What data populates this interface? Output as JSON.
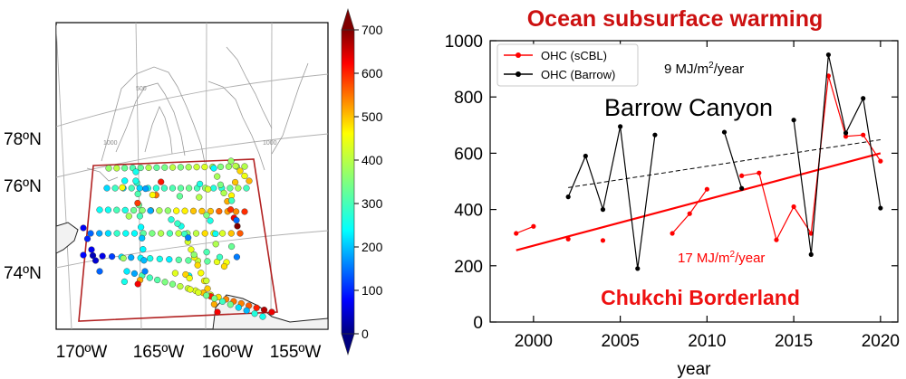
{
  "map_panel": {
    "lat_labels": [
      "78ºN",
      "76ºN",
      "74ºN"
    ],
    "lon_labels": [
      "170ºW",
      "165ºW",
      "160ºW",
      "155ºW"
    ],
    "contour_labels": [
      "500",
      "1000",
      "1000"
    ],
    "colorbar": {
      "ticks": [
        "700",
        "600",
        "500",
        "400",
        "300",
        "200",
        "100",
        "0"
      ],
      "range": [
        0,
        700
      ]
    }
  },
  "chart_data": {
    "type": "line",
    "title": "Ocean subsurface warming",
    "xlabel": "year",
    "ylabel": "",
    "xlim": [
      1997.5,
      2021
    ],
    "ylim": [
      0,
      1000
    ],
    "xticks": [
      "2000",
      "2005",
      "2010",
      "2015",
      "2020"
    ],
    "yticks": [
      "0",
      "200",
      "400",
      "600",
      "800",
      "1000"
    ],
    "legend": {
      "placement": "top-left",
      "entries": [
        "OHC (sCBL)",
        "OHC (Barrow)"
      ]
    },
    "series": [
      {
        "name": "OHC (sCBL)",
        "color": "#ff0000",
        "points": [
          [
            1999,
            315
          ],
          [
            2000,
            340
          ],
          [
            2002,
            295
          ],
          [
            2004,
            290
          ],
          [
            2008,
            315
          ],
          [
            2009,
            385
          ],
          [
            2010,
            472
          ],
          [
            2012,
            520
          ],
          [
            2013,
            530
          ],
          [
            2014,
            292
          ],
          [
            2015,
            410
          ],
          [
            2016,
            315
          ],
          [
            2017,
            875
          ],
          [
            2018,
            660
          ],
          [
            2019,
            665
          ],
          [
            2020,
            572
          ]
        ],
        "segments": [
          [
            1999,
            2000
          ],
          [
            2008,
            2010
          ],
          [
            2012,
            2020
          ]
        ]
      },
      {
        "name": "OHC (Barrow)",
        "color": "#000000",
        "points": [
          [
            2002,
            445
          ],
          [
            2003,
            590
          ],
          [
            2004,
            400
          ],
          [
            2005,
            695
          ],
          [
            2006,
            190
          ],
          [
            2007,
            665
          ],
          [
            2011,
            675
          ],
          [
            2012,
            475
          ],
          [
            2015,
            718
          ],
          [
            2016,
            240
          ],
          [
            2017,
            950
          ],
          [
            2018,
            672
          ],
          [
            2019,
            795
          ],
          [
            2020,
            405
          ]
        ],
        "segments": [
          [
            2002,
            2007
          ],
          [
            2011,
            2012
          ],
          [
            2015,
            2020
          ]
        ]
      }
    ],
    "trends": [
      {
        "name": "sCBL trend",
        "color": "#ff0000",
        "from": [
          1999,
          255
        ],
        "to": [
          2020,
          600
        ]
      },
      {
        "name": "Barrow trend",
        "color": "#000000",
        "from": [
          2002,
          478
        ],
        "to": [
          2020,
          648
        ]
      }
    ],
    "annotations": {
      "barrow_rate_prefix": "9 MJ/m",
      "barrow_rate_sup": "2",
      "barrow_rate_suffix": "/year",
      "barrow_region": "Barrow Canyon",
      "scbl_rate_prefix": "17 MJ/m",
      "scbl_rate_sup": "2",
      "scbl_rate_suffix": "/year",
      "scbl_region": "Chukchi Borderland"
    }
  }
}
